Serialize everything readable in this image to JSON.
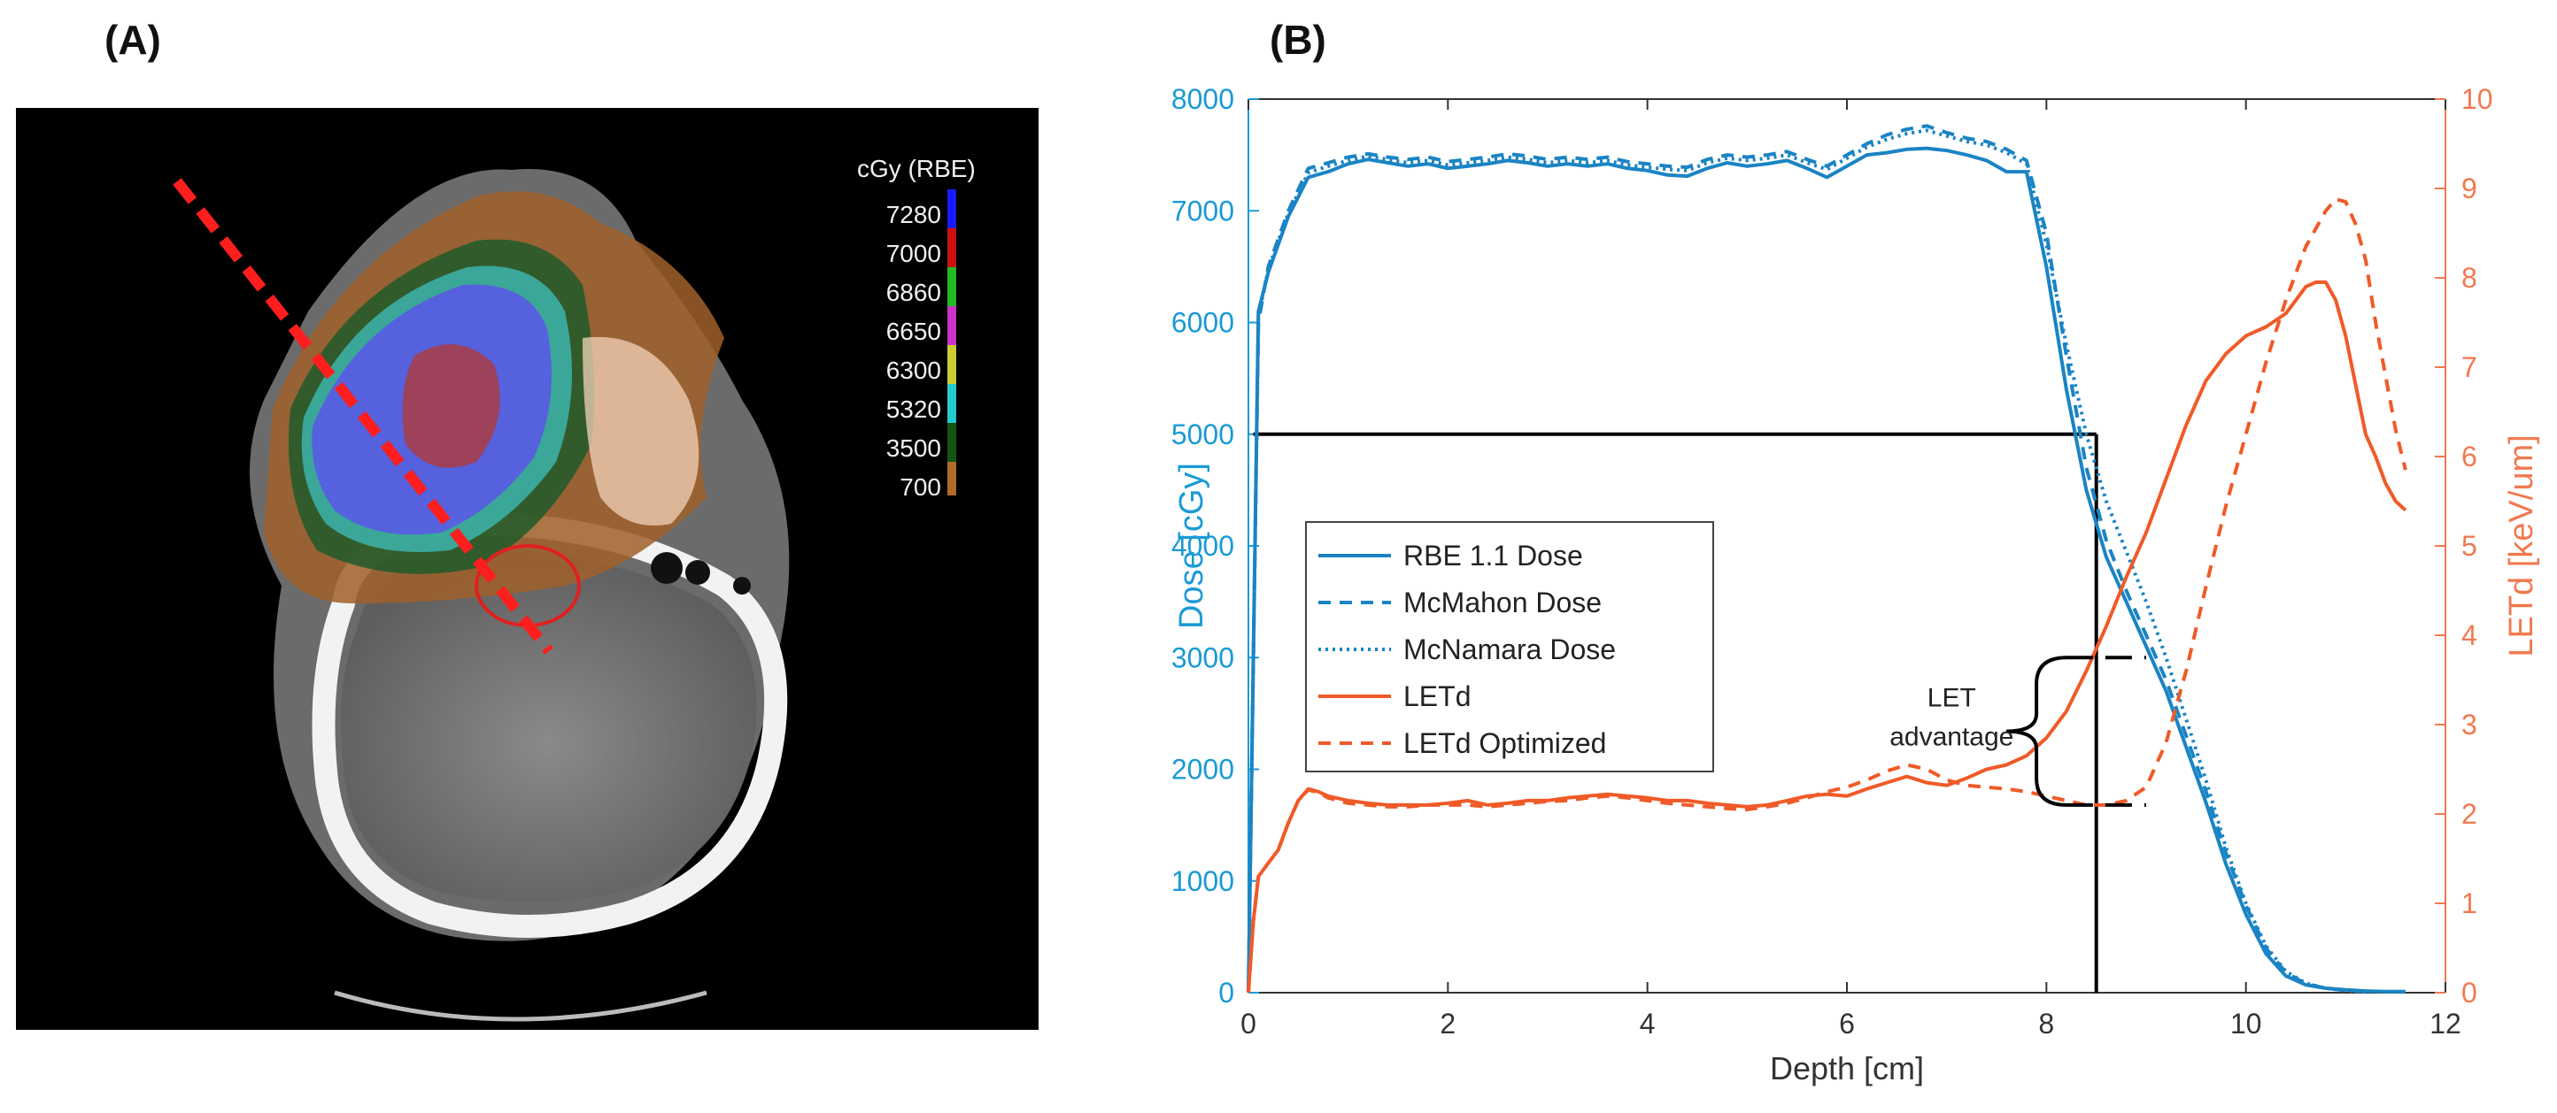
{
  "panel_a": {
    "label": "(A)",
    "colorbar": {
      "title": "cGy (RBE)",
      "levels": [
        {
          "value": "7280",
          "color": "#1a1aff"
        },
        {
          "value": "7000",
          "color": "#cc1111"
        },
        {
          "value": "6860",
          "color": "#22bb22"
        },
        {
          "value": "6650",
          "color": "#cc33cc"
        },
        {
          "value": "6300",
          "color": "#cccc33"
        },
        {
          "value": "5320",
          "color": "#22cccc"
        },
        {
          "value": "3500",
          "color": "#115511"
        },
        {
          "value": "700",
          "color": "#b06a2a"
        }
      ]
    }
  },
  "panel_b": {
    "label": "(B)"
  },
  "chart_data": {
    "type": "line",
    "xlabel": "Depth [cm]",
    "ylabel_left": "Dose [cGy]",
    "ylabel_right": "LETd [keV/um]",
    "xlim": [
      0,
      12
    ],
    "ylim_left": [
      0,
      8000
    ],
    "ylim_right": [
      0,
      10
    ],
    "x_ticks": [
      "0",
      "2",
      "4",
      "6",
      "8",
      "10",
      "12"
    ],
    "y_left_ticks": [
      "0",
      "1000",
      "2000",
      "3000",
      "4000",
      "5000",
      "6000",
      "7000",
      "8000"
    ],
    "y_right_ticks": [
      "0",
      "1",
      "2",
      "3",
      "4",
      "5",
      "6",
      "7",
      "8",
      "9",
      "10"
    ],
    "colors": {
      "dose": "#1a84c4",
      "let": "#f05a28",
      "axis_left": "#1a9ad6",
      "axis_right": "#f07a50"
    },
    "series": [
      {
        "name": "RBE 1.1 Dose",
        "axis": "left",
        "style": "solid",
        "x": [
          0,
          0.05,
          0.1,
          0.2,
          0.4,
          0.6,
          0.8,
          1.0,
          1.2,
          1.4,
          1.6,
          1.8,
          2.0,
          2.2,
          2.4,
          2.6,
          2.8,
          3.0,
          3.2,
          3.4,
          3.6,
          3.8,
          4.0,
          4.2,
          4.4,
          4.6,
          4.8,
          5.0,
          5.2,
          5.4,
          5.6,
          5.8,
          6.0,
          6.2,
          6.4,
          6.6,
          6.8,
          7.0,
          7.2,
          7.4,
          7.6,
          7.8,
          8.0,
          8.2,
          8.4,
          8.6,
          8.8,
          9.0,
          9.2,
          9.4,
          9.6,
          9.8,
          10.0,
          10.2,
          10.4,
          10.6,
          10.8,
          11.0,
          11.2,
          11.4,
          11.6
        ],
        "y": [
          0,
          3000,
          6100,
          6450,
          6950,
          7300,
          7350,
          7420,
          7460,
          7430,
          7400,
          7420,
          7380,
          7400,
          7420,
          7450,
          7430,
          7400,
          7420,
          7400,
          7420,
          7380,
          7360,
          7320,
          7310,
          7380,
          7430,
          7400,
          7420,
          7450,
          7380,
          7300,
          7400,
          7500,
          7520,
          7550,
          7560,
          7540,
          7500,
          7450,
          7350,
          7350,
          6500,
          5400,
          4500,
          3900,
          3500,
          3100,
          2700,
          2200,
          1700,
          1150,
          700,
          350,
          150,
          70,
          40,
          25,
          15,
          10,
          10
        ]
      },
      {
        "name": "McMahon Dose",
        "axis": "left",
        "style": "dashed",
        "x": [
          0,
          0.05,
          0.1,
          0.2,
          0.4,
          0.6,
          0.8,
          1.0,
          1.2,
          1.4,
          1.6,
          1.8,
          2.0,
          2.2,
          2.4,
          2.6,
          2.8,
          3.0,
          3.2,
          3.4,
          3.6,
          3.8,
          4.0,
          4.2,
          4.4,
          4.6,
          4.8,
          5.0,
          5.2,
          5.4,
          5.6,
          5.8,
          6.0,
          6.2,
          6.4,
          6.6,
          6.8,
          7.0,
          7.2,
          7.4,
          7.6,
          7.8,
          8.0,
          8.2,
          8.4,
          8.6,
          8.8,
          9.0,
          9.2,
          9.4,
          9.6,
          9.8,
          10.0,
          10.2,
          10.4,
          10.6,
          10.8,
          11.0,
          11.2
        ],
        "y": [
          0,
          3000,
          6000,
          6500,
          7000,
          7380,
          7430,
          7480,
          7510,
          7480,
          7460,
          7480,
          7440,
          7460,
          7480,
          7510,
          7490,
          7460,
          7480,
          7460,
          7480,
          7440,
          7420,
          7400,
          7390,
          7460,
          7500,
          7480,
          7500,
          7530,
          7460,
          7400,
          7500,
          7600,
          7680,
          7730,
          7760,
          7700,
          7650,
          7620,
          7550,
          7450,
          6800,
          5700,
          4700,
          4050,
          3600,
          3200,
          2800,
          2300,
          1800,
          1250,
          780,
          400,
          180,
          80,
          40,
          20,
          10
        ]
      },
      {
        "name": "McNamara Dose",
        "axis": "left",
        "style": "dotted",
        "x": [
          0,
          0.05,
          0.1,
          0.2,
          0.4,
          0.6,
          0.8,
          1.0,
          1.2,
          1.4,
          1.6,
          1.8,
          2.0,
          2.2,
          2.4,
          2.6,
          2.8,
          3.0,
          3.2,
          3.4,
          3.6,
          3.8,
          4.0,
          4.2,
          4.4,
          4.6,
          4.8,
          5.0,
          5.2,
          5.4,
          5.6,
          5.8,
          6.0,
          6.2,
          6.4,
          6.6,
          6.8,
          7.0,
          7.2,
          7.4,
          7.6,
          7.8,
          8.0,
          8.2,
          8.4,
          8.6,
          8.8,
          9.0,
          9.2,
          9.4,
          9.6,
          9.8,
          10.0,
          10.2,
          10.4,
          10.6,
          10.8,
          11.0,
          11.2
        ],
        "y": [
          0,
          3000,
          6050,
          6480,
          6980,
          7340,
          7400,
          7450,
          7490,
          7460,
          7430,
          7450,
          7410,
          7430,
          7450,
          7480,
          7460,
          7430,
          7450,
          7430,
          7450,
          7410,
          7390,
          7370,
          7360,
          7430,
          7470,
          7450,
          7470,
          7500,
          7430,
          7370,
          7470,
          7570,
          7640,
          7690,
          7720,
          7670,
          7620,
          7590,
          7520,
          7420,
          6700,
          5800,
          5000,
          4400,
          3950,
          3500,
          3000,
          2450,
          1900,
          1300,
          800,
          420,
          190,
          85,
          40,
          20,
          10
        ]
      },
      {
        "name": "LETd",
        "axis": "right",
        "style": "solid",
        "x": [
          0,
          0.05,
          0.1,
          0.2,
          0.3,
          0.4,
          0.5,
          0.6,
          0.7,
          0.8,
          1.0,
          1.2,
          1.4,
          1.6,
          1.8,
          2.0,
          2.2,
          2.4,
          2.6,
          2.8,
          3.0,
          3.2,
          3.4,
          3.6,
          3.8,
          4.0,
          4.2,
          4.4,
          4.6,
          4.8,
          5.0,
          5.2,
          5.4,
          5.6,
          5.8,
          6.0,
          6.2,
          6.4,
          6.6,
          6.8,
          7.0,
          7.2,
          7.4,
          7.6,
          7.8,
          8.0,
          8.2,
          8.4,
          8.6,
          8.8,
          9.0,
          9.2,
          9.4,
          9.6,
          9.8,
          10.0,
          10.2,
          10.4,
          10.5,
          10.6,
          10.7,
          10.8,
          10.9,
          11.0,
          11.1,
          11.2,
          11.3,
          11.4,
          11.5,
          11.6
        ],
        "y": [
          0,
          0.8,
          1.3,
          1.45,
          1.6,
          1.9,
          2.15,
          2.28,
          2.25,
          2.2,
          2.15,
          2.12,
          2.1,
          2.1,
          2.1,
          2.12,
          2.15,
          2.1,
          2.12,
          2.15,
          2.15,
          2.18,
          2.2,
          2.22,
          2.2,
          2.18,
          2.15,
          2.15,
          2.12,
          2.1,
          2.08,
          2.1,
          2.15,
          2.2,
          2.22,
          2.2,
          2.28,
          2.35,
          2.42,
          2.35,
          2.32,
          2.4,
          2.5,
          2.55,
          2.65,
          2.85,
          3.15,
          3.6,
          4.1,
          4.65,
          5.15,
          5.75,
          6.35,
          6.85,
          7.15,
          7.35,
          7.45,
          7.6,
          7.75,
          7.9,
          7.95,
          7.95,
          7.75,
          7.35,
          6.8,
          6.25,
          6.0,
          5.7,
          5.5,
          5.4
        ]
      },
      {
        "name": "LETd Optimized",
        "axis": "right",
        "style": "dashed",
        "x": [
          0,
          0.05,
          0.1,
          0.2,
          0.3,
          0.4,
          0.5,
          0.6,
          0.7,
          0.8,
          1.0,
          1.2,
          1.4,
          1.6,
          1.8,
          2.0,
          2.2,
          2.4,
          2.6,
          2.8,
          3.0,
          3.2,
          3.4,
          3.6,
          3.8,
          4.0,
          4.2,
          4.4,
          4.6,
          4.8,
          5.0,
          5.2,
          5.4,
          5.6,
          5.8,
          6.0,
          6.2,
          6.4,
          6.6,
          6.8,
          7.0,
          7.2,
          7.4,
          7.6,
          7.8,
          8.0,
          8.2,
          8.4,
          8.6,
          8.8,
          9.0,
          9.2,
          9.4,
          9.6,
          9.8,
          10.0,
          10.2,
          10.4,
          10.6,
          10.8,
          10.9,
          11.0,
          11.1,
          11.2,
          11.3,
          11.4,
          11.5,
          11.6
        ],
        "y": [
          0,
          0.8,
          1.3,
          1.45,
          1.6,
          1.9,
          2.15,
          2.27,
          2.24,
          2.18,
          2.12,
          2.1,
          2.08,
          2.08,
          2.1,
          2.1,
          2.1,
          2.08,
          2.1,
          2.12,
          2.14,
          2.15,
          2.18,
          2.2,
          2.18,
          2.15,
          2.12,
          2.1,
          2.08,
          2.06,
          2.05,
          2.08,
          2.12,
          2.18,
          2.25,
          2.3,
          2.38,
          2.48,
          2.55,
          2.5,
          2.38,
          2.32,
          2.3,
          2.28,
          2.25,
          2.2,
          2.15,
          2.1,
          2.1,
          2.15,
          2.3,
          2.8,
          3.6,
          4.55,
          5.45,
          6.25,
          7.05,
          7.75,
          8.35,
          8.75,
          8.88,
          8.85,
          8.6,
          8.2,
          7.5,
          6.9,
          6.3,
          5.85
        ]
      }
    ],
    "reference_lines": {
      "dose_level": 5000,
      "depth": 8.5
    },
    "annotation": {
      "line1": "LET",
      "line2": "advantage",
      "let_high": 3.75,
      "let_low": 2.1
    }
  }
}
